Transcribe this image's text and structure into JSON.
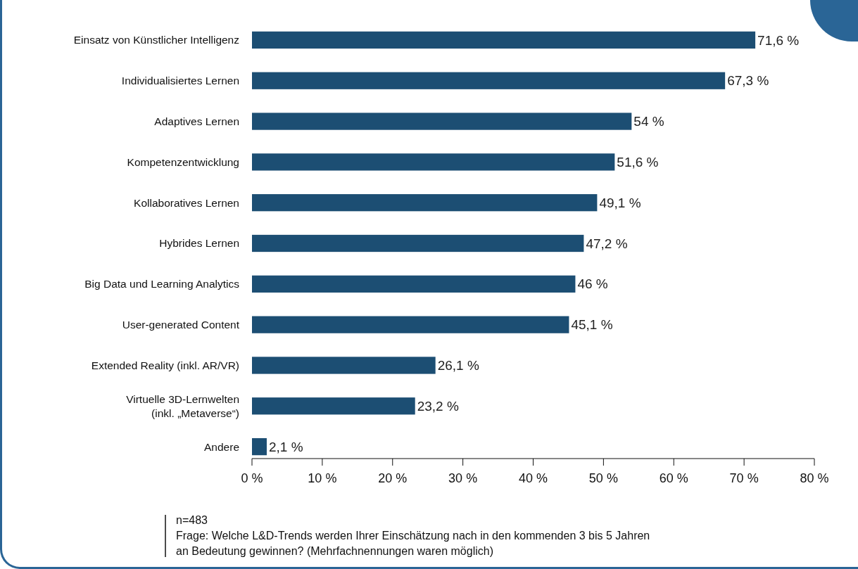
{
  "chart_data": {
    "type": "bar",
    "orientation": "horizontal",
    "categories": [
      "Einsatz von Künstlicher Intelligenz",
      "Individualisiertes Lernen",
      "Adaptives Lernen",
      "Kompetenzentwicklung",
      "Kollaboratives Lernen",
      "Hybrides Lernen",
      "Big Data und Learning Analytics",
      "User-generated Content",
      "Extended Reality (inkl. AR/VR)",
      "Virtuelle 3D-Lernwelten\n(inkl. „Metaverse“)",
      "Andere"
    ],
    "values": [
      71.6,
      67.3,
      54,
      51.6,
      49.1,
      47.2,
      46,
      45.1,
      26.1,
      23.2,
      2.1
    ],
    "value_labels": [
      "71,6 %",
      "67,3 %",
      "54 %",
      "51,6 %",
      "49,1 %",
      "47,2 %",
      "46 %",
      "45,1 %",
      "26,1 %",
      "23,2 %",
      "2,1 %"
    ],
    "color": "#1c4e73",
    "xlim": [
      0,
      80
    ],
    "xticks": [
      {
        "value": 0,
        "label": "0 %"
      },
      {
        "value": 10,
        "label": "10 %"
      },
      {
        "value": 20,
        "label": "20 %"
      },
      {
        "value": 30,
        "label": "30 %"
      },
      {
        "value": 40,
        "label": "40 %"
      },
      {
        "value": 50,
        "label": "50 %"
      },
      {
        "value": 60,
        "label": "60 %"
      },
      {
        "value": 70,
        "label": "70 %"
      },
      {
        "value": 80,
        "label": "80 %"
      }
    ],
    "grid": false,
    "annotations": [
      "n=483",
      "Frage: Welche L&D-Trends werden Ihrer Einschätzung nach in den kommenden 3 bis 5 Jahren an Bedeutung gewinnen? (Mehrfachnennungen waren möglich)"
    ]
  }
}
